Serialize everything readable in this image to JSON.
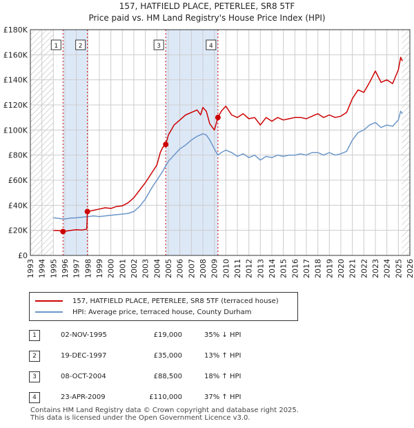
{
  "title": {
    "line1": "157, HATFIELD PLACE, PETERLEE, SR8 5TF",
    "line2": "Price paid vs. HM Land Registry's House Price Index (HPI)"
  },
  "colors": {
    "property": "#cc0000",
    "hpi": "#6b96c8",
    "shade": "#dde8f7",
    "hatch": "#aaaaaa",
    "grid": "#cccccc"
  },
  "legend": {
    "property": "157, HATFIELD PLACE, PETERLEE, SR8 5TF (terraced house)",
    "hpi": "HPI: Average price, terraced house, County Durham"
  },
  "sales": [
    {
      "num": "1",
      "date": "02-NOV-1995",
      "price": "£19,000",
      "hpi": "35% ↓ HPI"
    },
    {
      "num": "2",
      "date": "19-DEC-1997",
      "price": "£35,000",
      "hpi": "13% ↑ HPI"
    },
    {
      "num": "3",
      "date": "08-OCT-2004",
      "price": "£88,500",
      "hpi": "18% ↑ HPI"
    },
    {
      "num": "4",
      "date": "23-APR-2009",
      "price": "£110,000",
      "hpi": "37% ↑ HPI"
    }
  ],
  "footer": {
    "line1": "Contains HM Land Registry data © Crown copyright and database right 2025.",
    "line2": "This data is licensed under the Open Government Licence v3.0."
  },
  "chart_data": {
    "type": "line",
    "title": "Price paid vs. HM Land Registry's House Price Index (HPI)",
    "xlabel": "",
    "ylabel": "",
    "xlim": [
      1993,
      2026
    ],
    "ylim": [
      0,
      180000
    ],
    "x_ticks": [
      1993,
      1994,
      1995,
      1996,
      1997,
      1998,
      1999,
      2000,
      2001,
      2002,
      2003,
      2004,
      2005,
      2006,
      2007,
      2008,
      2009,
      2010,
      2011,
      2012,
      2013,
      2014,
      2015,
      2016,
      2017,
      2018,
      2019,
      2020,
      2021,
      2022,
      2023,
      2024,
      2025,
      2026
    ],
    "y_ticks": [
      0,
      20000,
      40000,
      60000,
      80000,
      100000,
      120000,
      140000,
      160000,
      180000
    ],
    "y_tick_labels": [
      "£0",
      "£20K",
      "£40K",
      "£60K",
      "£80K",
      "£100K",
      "£120K",
      "£140K",
      "£160K",
      "£180K"
    ],
    "grid": true,
    "hatched_ranges": [
      [
        1993,
        1995.0
      ],
      [
        2025.3,
        2026
      ]
    ],
    "shaded_ranges": [
      [
        1995.84,
        1997.96
      ],
      [
        2004.77,
        2009.31
      ]
    ],
    "sale_markers": [
      {
        "label": "1",
        "x": 1995.84,
        "y": 19000
      },
      {
        "label": "2",
        "x": 1997.96,
        "y": 35000
      },
      {
        "label": "3",
        "x": 2004.77,
        "y": 88500
      },
      {
        "label": "4",
        "x": 2009.31,
        "y": 110000
      }
    ],
    "series": [
      {
        "name": "157, HATFIELD PLACE, PETERLEE, SR8 5TF (terraced house)",
        "x": [
          1995.0,
          1995.5,
          1995.84,
          1996.5,
          1997.0,
          1997.5,
          1997.9,
          1997.96,
          1998.5,
          1999.0,
          1999.5,
          2000.0,
          2000.5,
          2001.0,
          2001.5,
          2002.0,
          2002.5,
          2003.0,
          2003.5,
          2004.0,
          2004.3,
          2004.5,
          2004.77,
          2005.0,
          2005.5,
          2006.0,
          2006.5,
          2007.0,
          2007.5,
          2007.8,
          2008.0,
          2008.3,
          2008.6,
          2009.0,
          2009.31,
          2009.6,
          2010.0,
          2010.5,
          2011.0,
          2011.5,
          2012.0,
          2012.5,
          2013.0,
          2013.5,
          2014.0,
          2014.5,
          2015.0,
          2015.5,
          2016.0,
          2016.5,
          2017.0,
          2017.5,
          2018.0,
          2018.5,
          2019.0,
          2019.5,
          2020.0,
          2020.5,
          2021.0,
          2021.5,
          2022.0,
          2022.5,
          2023.0,
          2023.5,
          2024.0,
          2024.5,
          2025.0,
          2025.2,
          2025.35
        ],
        "values": [
          20000,
          19800,
          19000,
          20000,
          20500,
          20200,
          21000,
          35000,
          36000,
          37000,
          38000,
          37500,
          39000,
          39500,
          42000,
          46000,
          52000,
          58000,
          65000,
          72000,
          82000,
          86000,
          88500,
          96000,
          104000,
          108000,
          112000,
          114000,
          116000,
          112000,
          118000,
          115000,
          105000,
          100000,
          110000,
          115000,
          119000,
          112000,
          110000,
          113000,
          109000,
          110000,
          104000,
          110000,
          107000,
          110000,
          108000,
          109000,
          110000,
          110000,
          109000,
          111000,
          113000,
          110000,
          112000,
          110000,
          111000,
          114000,
          125000,
          132000,
          130000,
          138000,
          147000,
          138000,
          140000,
          137000,
          148000,
          158000,
          155000
        ]
      },
      {
        "name": "HPI: Average price, terraced house, County Durham",
        "x": [
          1995.0,
          1995.5,
          1996.0,
          1996.5,
          1997.0,
          1997.5,
          1998.0,
          1998.5,
          1999.0,
          1999.5,
          2000.0,
          2000.5,
          2001.0,
          2001.5,
          2002.0,
          2002.5,
          2003.0,
          2003.5,
          2004.0,
          2004.5,
          2005.0,
          2005.5,
          2006.0,
          2006.5,
          2007.0,
          2007.5,
          2008.0,
          2008.3,
          2008.6,
          2009.0,
          2009.3,
          2009.6,
          2010.0,
          2010.5,
          2011.0,
          2011.5,
          2012.0,
          2012.5,
          2013.0,
          2013.5,
          2014.0,
          2014.5,
          2015.0,
          2015.5,
          2016.0,
          2016.5,
          2017.0,
          2017.5,
          2018.0,
          2018.5,
          2019.0,
          2019.5,
          2020.0,
          2020.5,
          2021.0,
          2021.5,
          2022.0,
          2022.5,
          2023.0,
          2023.5,
          2024.0,
          2024.5,
          2025.0,
          2025.2,
          2025.35
        ],
        "values": [
          30000,
          29500,
          29000,
          29800,
          30000,
          30500,
          31000,
          31500,
          31000,
          31500,
          32000,
          32500,
          33000,
          33500,
          35000,
          39000,
          45000,
          53000,
          60000,
          67000,
          75000,
          80000,
          85000,
          88000,
          92000,
          95000,
          97000,
          96000,
          92000,
          85000,
          80000,
          82000,
          84000,
          82000,
          79000,
          81000,
          78000,
          80000,
          76000,
          79000,
          78000,
          80000,
          79000,
          80000,
          80000,
          81000,
          80000,
          82000,
          82000,
          80000,
          82000,
          80000,
          81000,
          83000,
          92000,
          98000,
          100000,
          104000,
          106000,
          102000,
          104000,
          103000,
          108000,
          115000,
          113000
        ]
      }
    ]
  }
}
